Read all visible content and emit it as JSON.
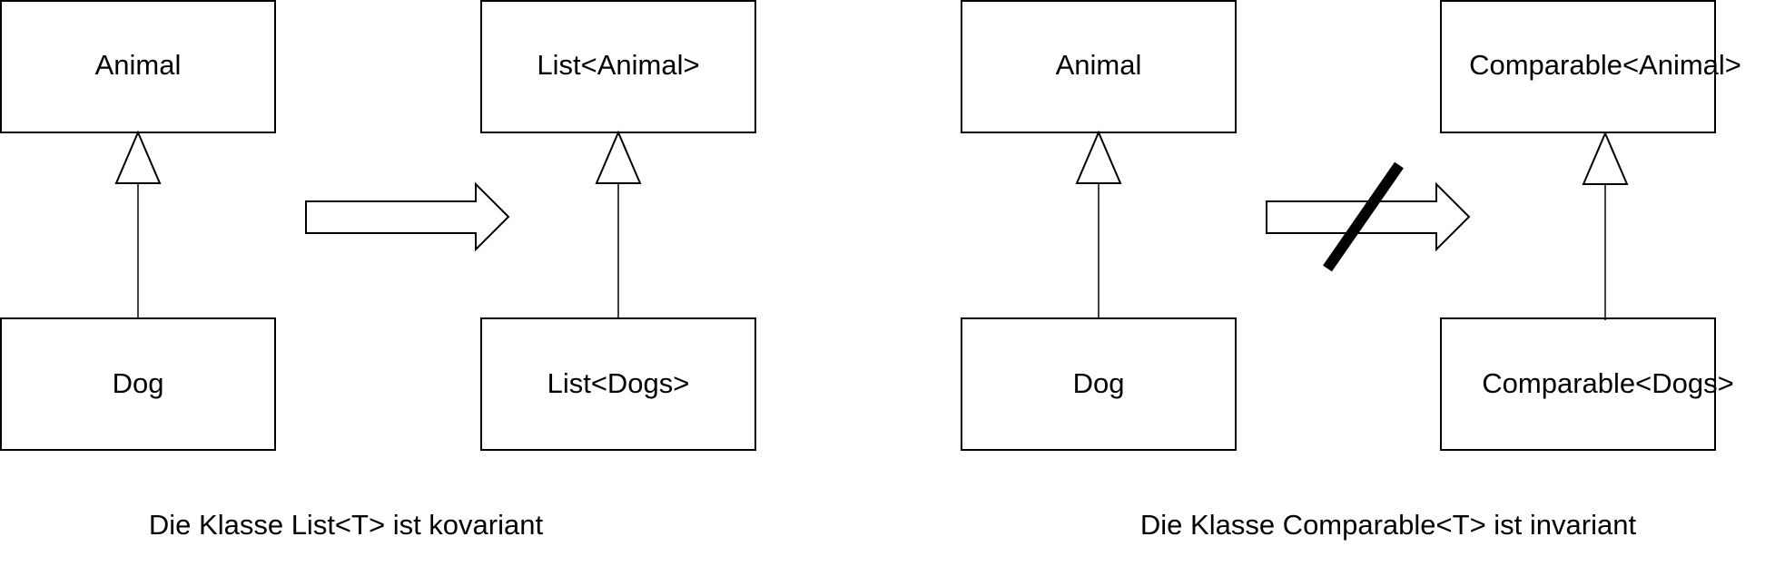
{
  "left_panel": {
    "super_box": "Animal",
    "sub_box": "Dog",
    "generic_super_box": "List<Animal>",
    "generic_sub_box": "List<Dogs>",
    "caption": "Die Klasse List<T> ist kovariant"
  },
  "right_panel": {
    "super_box": "Animal",
    "sub_box": "Dog",
    "generic_super_box": "Comparable<Animal>",
    "generic_sub_box": "Comparable<Dogs>",
    "caption": "Die Klasse Comparable<T> ist invariant"
  }
}
